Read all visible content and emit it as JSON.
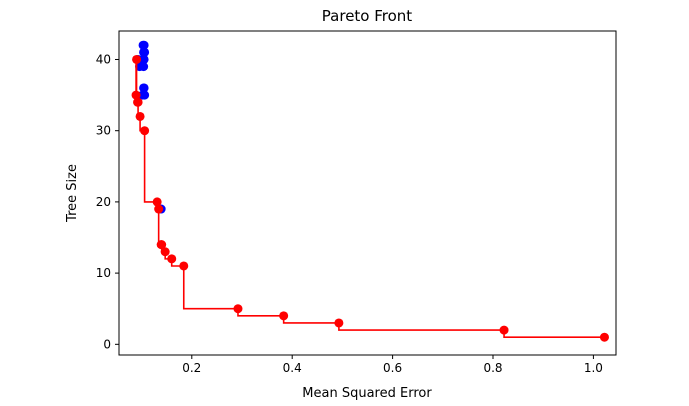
{
  "chart_data": {
    "type": "scatter",
    "title": "Pareto Front",
    "xlabel": "Mean Squared Error",
    "ylabel": "Tree Size",
    "xlim": [
      0.055,
      1.045
    ],
    "ylim": [
      -1.5,
      44
    ],
    "xticks": [
      0.2,
      0.4,
      0.6,
      0.8,
      1.0
    ],
    "xtick_labels": [
      "0.2",
      "0.4",
      "0.6",
      "0.8",
      "1.0"
    ],
    "yticks": [
      0,
      10,
      20,
      30,
      40
    ],
    "ytick_labels": [
      "0",
      "10",
      "20",
      "30",
      "40"
    ],
    "grid": false,
    "series": [
      {
        "color": "#0000ff",
        "style": "points",
        "x": [
          0.103,
          0.105,
          0.106,
          0.104,
          0.105,
          0.103,
          0.104,
          0.096,
          0.093,
          0.102,
          0.106,
          0.104,
          0.105,
          0.139
        ],
        "y": [
          42,
          42,
          41,
          41,
          40,
          40,
          39,
          39,
          40,
          35,
          35,
          36,
          36,
          19
        ]
      },
      {
        "color": "#ff0000",
        "style": "points+step",
        "x": [
          0.09,
          0.089,
          0.092,
          0.093,
          0.097,
          0.106,
          0.131,
          0.134,
          0.139,
          0.14,
          0.147,
          0.16,
          0.184,
          0.292,
          0.383,
          0.493,
          0.822,
          1.022
        ],
        "y": [
          40,
          35,
          34,
          34,
          32,
          30,
          20,
          19,
          14,
          14,
          13,
          12,
          11,
          5,
          4,
          3,
          2,
          1
        ]
      }
    ]
  }
}
